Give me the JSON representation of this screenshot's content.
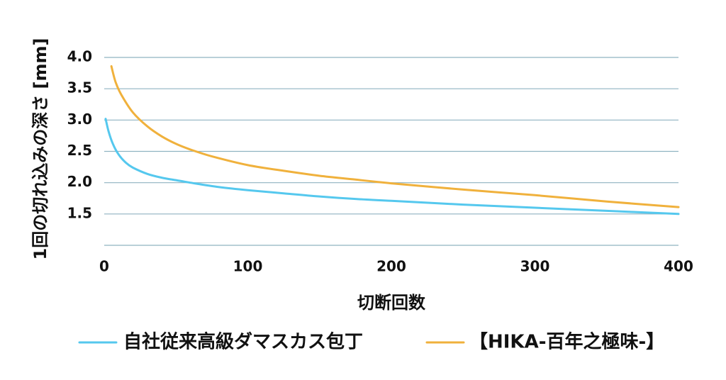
{
  "chart_data": {
    "type": "line",
    "title": "",
    "xlabel": "切断回数",
    "ylabel": "1回の切れ込みの深さ [mm]",
    "xlim": [
      0,
      400
    ],
    "ylim": [
      1.0,
      4.0
    ],
    "x_ticks": [
      0,
      100,
      200,
      300,
      400
    ],
    "y_ticks": [
      1.5,
      2.0,
      2.5,
      3.0,
      3.5,
      4.0
    ],
    "y_tick_labels": [
      "1.5",
      "2.0",
      "2.5",
      "3.0",
      "3.5",
      "4.0"
    ],
    "x_tick_labels": [
      "0",
      "100",
      "200",
      "300",
      "400"
    ],
    "grid": true,
    "legend_position": "bottom",
    "series": [
      {
        "name": "自社従来高級ダマスカス包丁",
        "color": "#55c8ee",
        "x": [
          1,
          3,
          6,
          10,
          15,
          20,
          30,
          40,
          50,
          60,
          80,
          100,
          125,
          150,
          175,
          200,
          250,
          300,
          350,
          400
        ],
        "y": [
          3.02,
          2.82,
          2.62,
          2.45,
          2.32,
          2.24,
          2.14,
          2.08,
          2.04,
          2.0,
          1.93,
          1.88,
          1.83,
          1.78,
          1.74,
          1.71,
          1.65,
          1.6,
          1.55,
          1.5
        ]
      },
      {
        "name": "【HIKA-百年之極味-】",
        "color": "#f0b13c",
        "x": [
          5,
          8,
          12,
          20,
          30,
          40,
          50,
          60,
          75,
          100,
          125,
          150,
          175,
          200,
          250,
          300,
          350,
          400
        ],
        "y": [
          3.86,
          3.6,
          3.4,
          3.12,
          2.9,
          2.74,
          2.62,
          2.53,
          2.42,
          2.28,
          2.19,
          2.11,
          2.05,
          1.99,
          1.89,
          1.8,
          1.7,
          1.61
        ]
      }
    ]
  }
}
